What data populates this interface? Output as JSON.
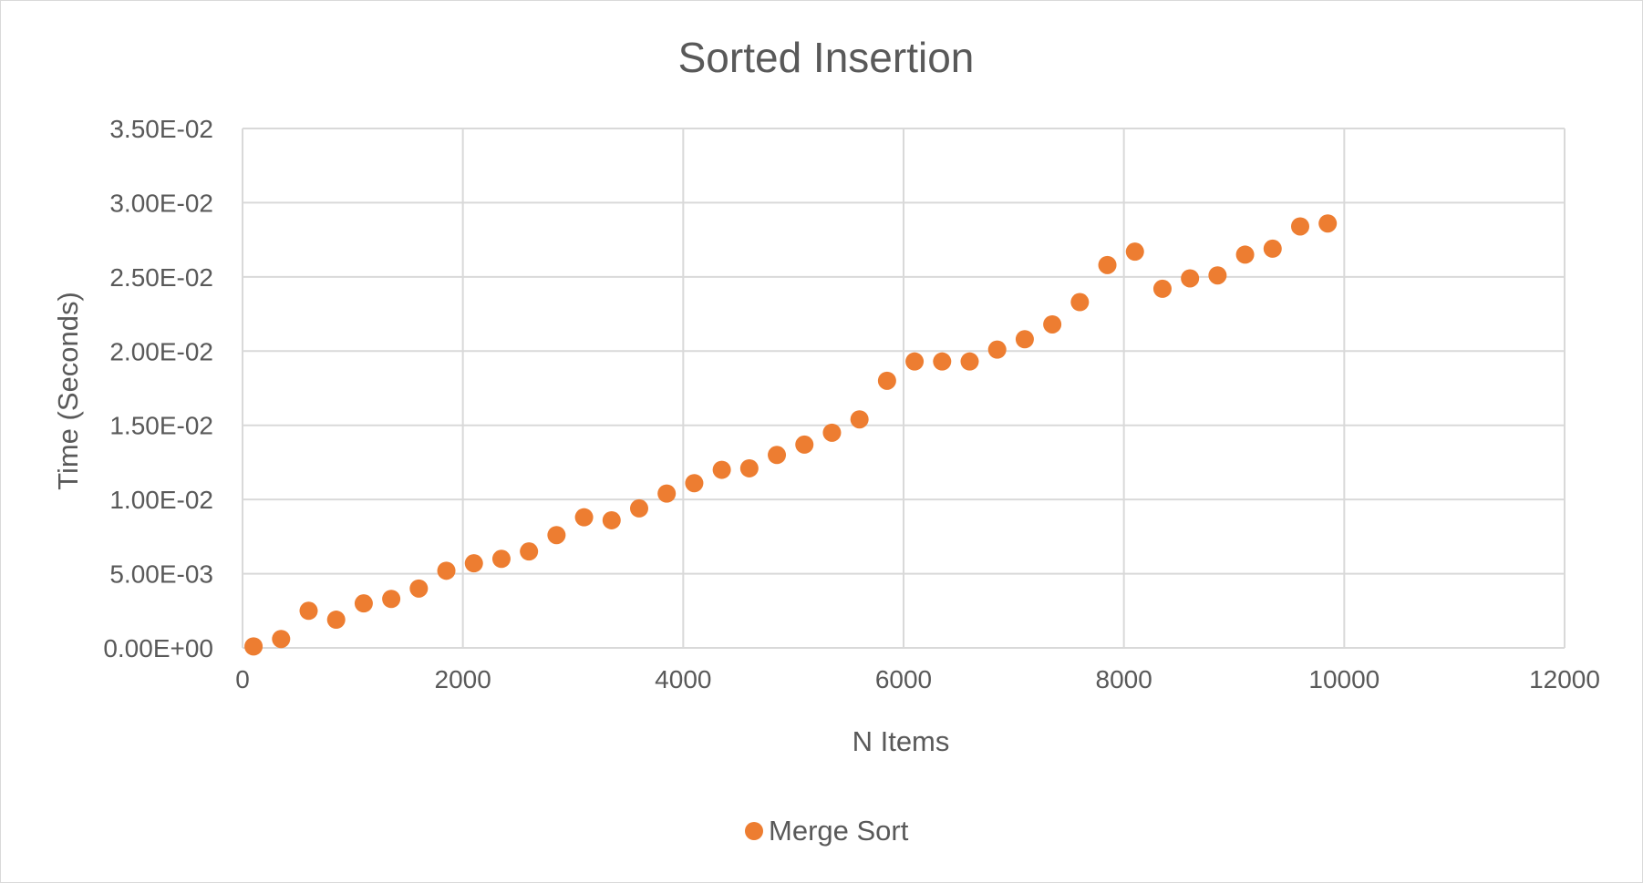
{
  "chart_data": {
    "type": "scatter",
    "title": "Sorted Insertion",
    "xlabel": "N Items",
    "ylabel": "Time (Seconds)",
    "xlim": [
      0,
      12000
    ],
    "ylim": [
      0,
      0.035
    ],
    "x_ticks": [
      0,
      2000,
      4000,
      6000,
      8000,
      10000,
      12000
    ],
    "x_tick_labels": [
      "0",
      "2000",
      "4000",
      "6000",
      "8000",
      "10000",
      "12000"
    ],
    "y_ticks": [
      0,
      0.005,
      0.01,
      0.015,
      0.02,
      0.025,
      0.03,
      0.035
    ],
    "y_tick_labels": [
      "0.00E+00",
      "5.00E-03",
      "1.00E-02",
      "1.50E-02",
      "2.00E-02",
      "2.50E-02",
      "3.00E-02",
      "3.50E-02"
    ],
    "grid": true,
    "legend_position": "bottom",
    "series": [
      {
        "name": "Merge Sort",
        "color": "#ED7D31",
        "x": [
          100,
          350,
          600,
          850,
          1100,
          1350,
          1600,
          1850,
          2100,
          2350,
          2600,
          2850,
          3100,
          3350,
          3600,
          3850,
          4100,
          4350,
          4600,
          4850,
          5100,
          5350,
          5600,
          5850,
          6100,
          6350,
          6600,
          6850,
          7100,
          7350,
          7600,
          7850,
          8100,
          8350,
          8600,
          8850,
          9100,
          9350,
          9600,
          9850
        ],
        "y": [
          0.0001,
          0.0006,
          0.0025,
          0.0019,
          0.003,
          0.0033,
          0.004,
          0.0052,
          0.0057,
          0.006,
          0.0065,
          0.0076,
          0.0088,
          0.0086,
          0.0094,
          0.0104,
          0.0111,
          0.012,
          0.0121,
          0.013,
          0.0137,
          0.0145,
          0.0154,
          0.018,
          0.0193,
          0.0193,
          0.0193,
          0.0201,
          0.0208,
          0.0218,
          0.0233,
          0.0258,
          0.0267,
          0.0242,
          0.0249,
          0.0251,
          0.0265,
          0.0269,
          0.0284,
          0.0286
        ]
      }
    ]
  }
}
